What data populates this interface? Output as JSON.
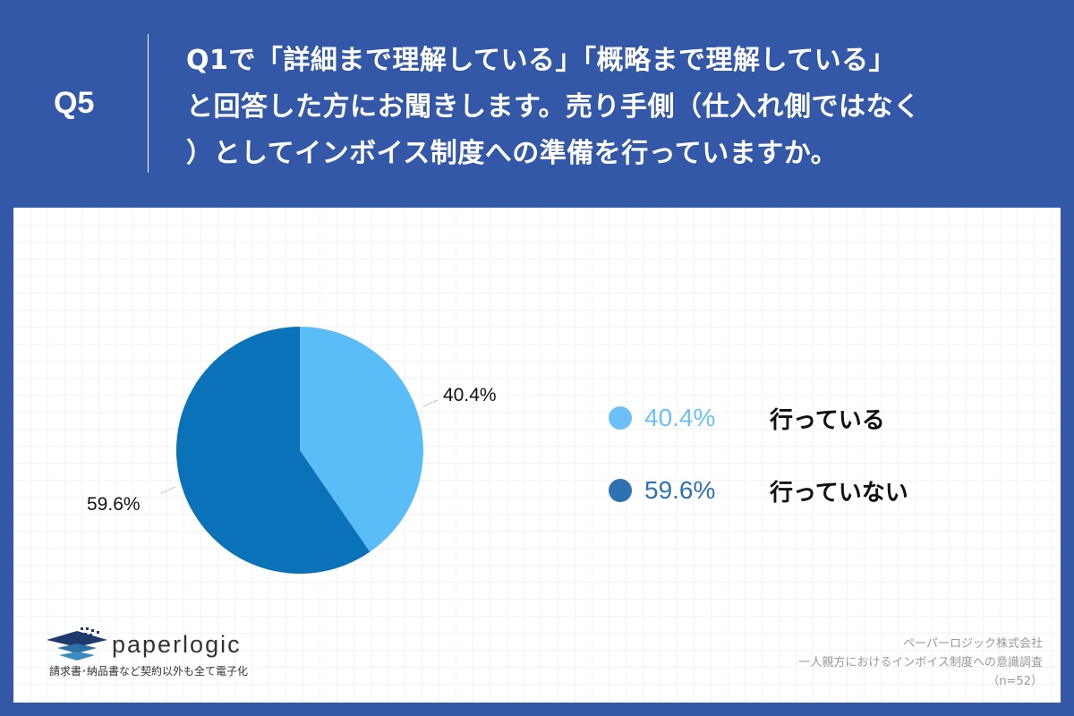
{
  "header": {
    "question_number": "Q5",
    "question_lines": [
      "Q1で「詳細まで理解している」「概略まで理解している」",
      "と回答した方にお聞きします。売り手側（仕入れ側ではなく",
      "）としてインボイス制度への準備を行っていますか。"
    ]
  },
  "chart_data": {
    "type": "pie",
    "title": "Q1で「詳細まで理解している」「概略まで理解している」と回答した方にお聞きします。売り手側（仕入れ側ではなく）としてインボイス制度への準備を行っていますか。",
    "categories": [
      "行っている",
      "行っていない"
    ],
    "values": [
      40.4,
      59.6
    ],
    "colors": [
      "#5bbdf8",
      "#0a72b8"
    ],
    "data_labels": [
      "40.4%",
      "59.6%"
    ],
    "legend_position": "right",
    "start_angle": "12 o'clock, clockwise",
    "n": 52
  },
  "legend": {
    "items": [
      {
        "pct": "40.4%",
        "label": "行っている",
        "color": "#6cc0f8"
      },
      {
        "pct": "59.6%",
        "label": "行っていない",
        "color": "#2f72b4"
      }
    ]
  },
  "pie_labels": {
    "a": "40.4%",
    "b": "59.6%"
  },
  "logo": {
    "name": "paperlogic",
    "tagline": "請求書･納品書など契約以外も全て電子化"
  },
  "source": {
    "company": "ペーパーロジック株式会社",
    "survey": "一人親方におけるインボイス制度への意識調査",
    "sample": "（n=52）"
  }
}
